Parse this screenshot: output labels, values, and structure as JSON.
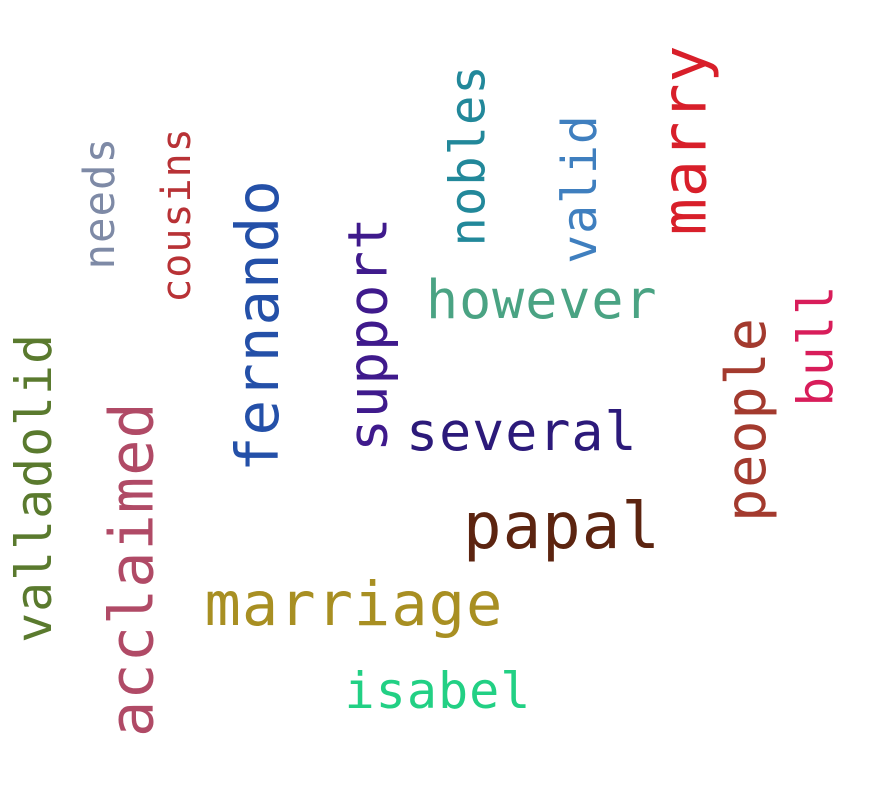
{
  "words": [
    {
      "id": "valladolid",
      "text": "valladolid",
      "color": "#5a7a2e",
      "vertical": true
    },
    {
      "id": "acclaimed",
      "text": "acclaimed",
      "color": "#b04a66",
      "vertical": true
    },
    {
      "id": "needs",
      "text": "needs",
      "color": "#7e8aa6",
      "vertical": true
    },
    {
      "id": "cousins",
      "text": "cousins",
      "color": "#b83236",
      "vertical": true
    },
    {
      "id": "fernando",
      "text": "fernando",
      "color": "#2450a8",
      "vertical": true
    },
    {
      "id": "support",
      "text": "support",
      "color": "#3f1a8c",
      "vertical": true
    },
    {
      "id": "nobles",
      "text": "nobles",
      "color": "#22889a",
      "vertical": true
    },
    {
      "id": "valid",
      "text": "valid",
      "color": "#3f7fbf",
      "vertical": true
    },
    {
      "id": "marry",
      "text": "marry",
      "color": "#d81f2a",
      "vertical": true
    },
    {
      "id": "however",
      "text": "however",
      "color": "#4aa383",
      "vertical": false
    },
    {
      "id": "people",
      "text": "people",
      "color": "#a33a2e",
      "vertical": true
    },
    {
      "id": "bull",
      "text": "bull",
      "color": "#d81d5a",
      "vertical": true
    },
    {
      "id": "several",
      "text": "several",
      "color": "#2c1a7a",
      "vertical": false
    },
    {
      "id": "papal",
      "text": "papal",
      "color": "#5c2410",
      "vertical": false
    },
    {
      "id": "marriage",
      "text": "marriage",
      "color": "#a88f22",
      "vertical": false
    },
    {
      "id": "isabel",
      "text": "isabel",
      "color": "#22d084",
      "vertical": false
    }
  ]
}
